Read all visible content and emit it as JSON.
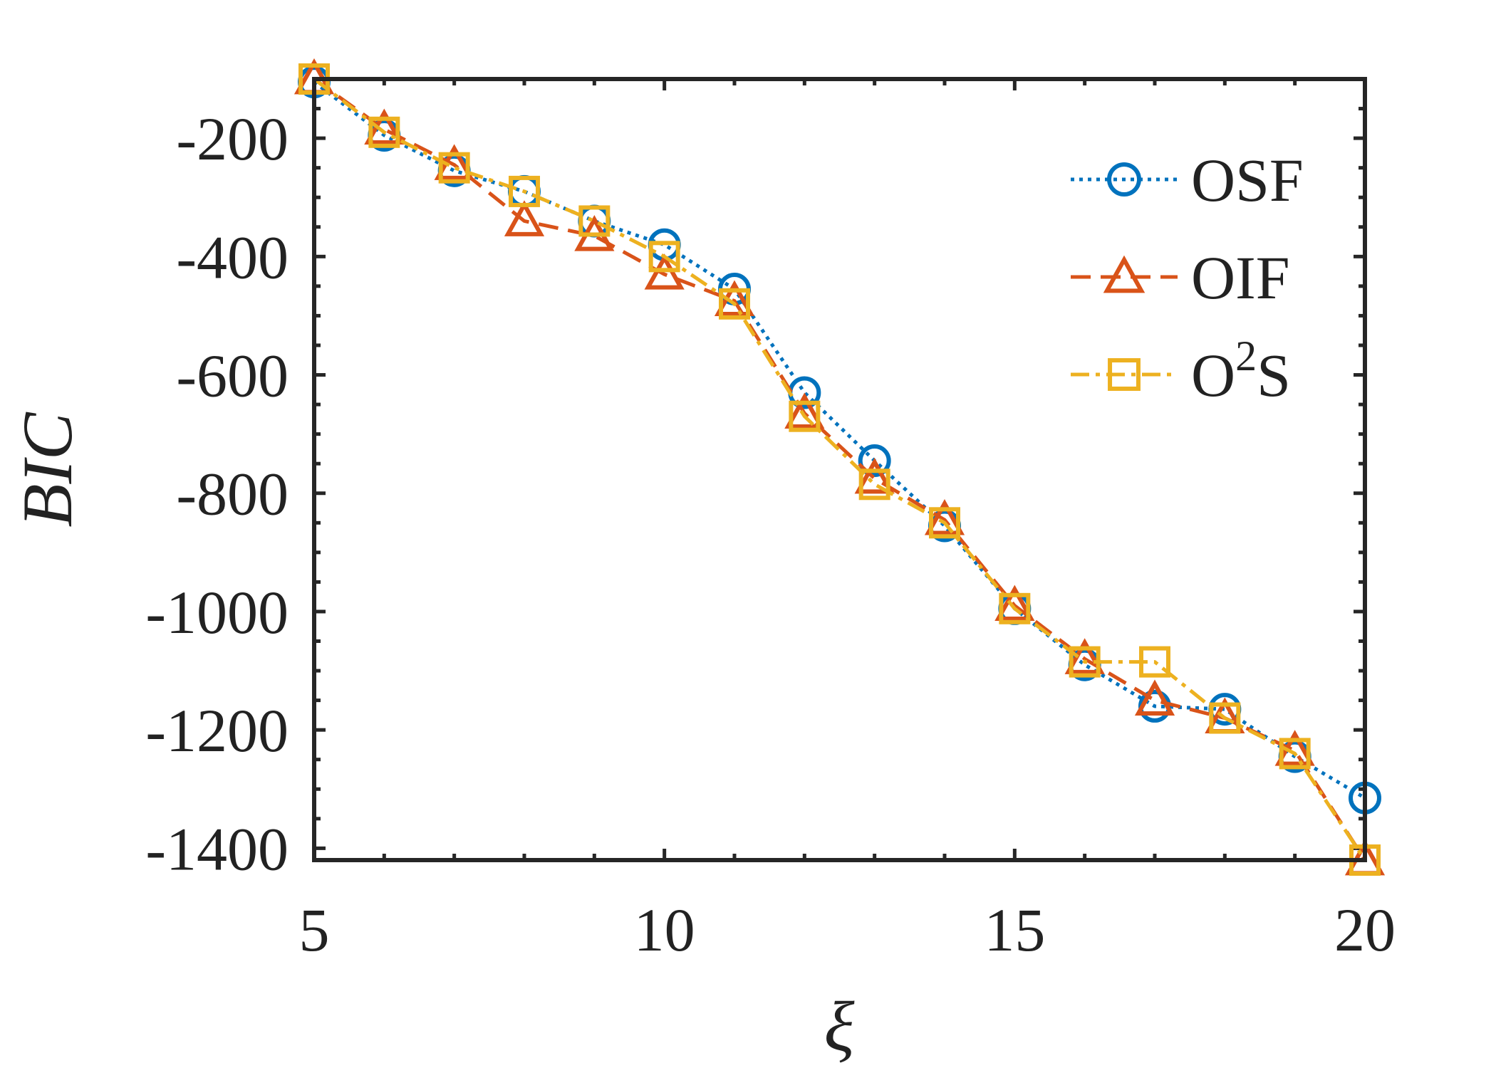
{
  "chart_data": {
    "type": "line",
    "title": "",
    "xlabel": "ξ",
    "ylabel": "BIC",
    "xlim": [
      5,
      20
    ],
    "ylim": [
      -1420,
      -100
    ],
    "xticks": [
      5,
      10,
      15,
      20
    ],
    "yticks": [
      -200,
      -400,
      -600,
      -800,
      -1000,
      -1200,
      -1400
    ],
    "grid": false,
    "legend_position": "top-right",
    "x": [
      5,
      6,
      7,
      8,
      9,
      10,
      11,
      12,
      13,
      14,
      15,
      16,
      17,
      18,
      19,
      20
    ],
    "series": [
      {
        "name": "OSF",
        "legend_base": "OSF",
        "legend_sup": "",
        "legend_tail": "",
        "color": "#0072BD",
        "marker": "circle",
        "line_style": "dotted",
        "values": [
          -105,
          -195,
          -255,
          -290,
          -340,
          -380,
          -455,
          -630,
          -745,
          -855,
          -995,
          -1090,
          -1160,
          -1165,
          -1245,
          -1315
        ]
      },
      {
        "name": "OIF",
        "legend_base": "OIF",
        "legend_sup": "",
        "legend_tail": "",
        "color": "#D95319",
        "marker": "triangle",
        "line_style": "dashed",
        "values": [
          -100,
          -185,
          -245,
          -340,
          -365,
          -430,
          -475,
          -665,
          -775,
          -845,
          -990,
          -1080,
          -1150,
          -1180,
          -1235,
          -1420
        ]
      },
      {
        "name": "O2S",
        "legend_base": "O",
        "legend_sup": "2",
        "legend_tail": "S",
        "color": "#EDB120",
        "marker": "square",
        "line_style": "dashdot",
        "values": [
          -100,
          -190,
          -250,
          -290,
          -340,
          -400,
          -480,
          -670,
          -785,
          -850,
          -995,
          -1085,
          -1085,
          -1180,
          -1240,
          -1420
        ]
      }
    ]
  }
}
